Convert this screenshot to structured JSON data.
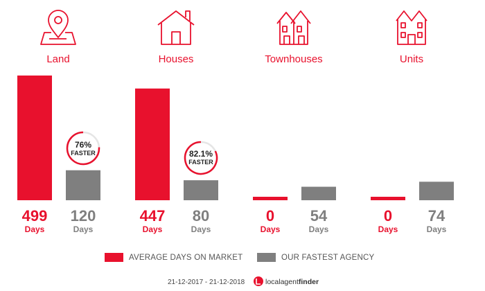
{
  "colors": {
    "red": "#e8112d",
    "grey": "#7f7f7f",
    "dark": "#222222"
  },
  "chart_data": {
    "type": "bar",
    "categories": [
      "Land",
      "Houses",
      "Townhouses",
      "Units"
    ],
    "series": [
      {
        "name": "AVERAGE DAYS ON MARKET",
        "values": [
          499,
          447,
          0,
          0
        ]
      },
      {
        "name": "OUR FASTEST AGENCY",
        "values": [
          120,
          80,
          54,
          74
        ]
      }
    ],
    "value_unit": "Days",
    "badges": [
      {
        "category": "Land",
        "pct": "76%",
        "word": "FASTER",
        "fraction": 0.76
      },
      {
        "category": "Houses",
        "pct": "82.1%",
        "word": "FASTER",
        "fraction": 0.821
      }
    ],
    "icons": [
      "map-pin-icon",
      "house-icon",
      "townhouse-icon",
      "units-icon"
    ],
    "ylim": [
      0,
      499
    ],
    "legend_position": "bottom",
    "grid": false
  },
  "footer": {
    "date_range": "21-12-2017 - 21-12-2018",
    "brand_part1": "localagent",
    "brand_part2": "finder"
  }
}
